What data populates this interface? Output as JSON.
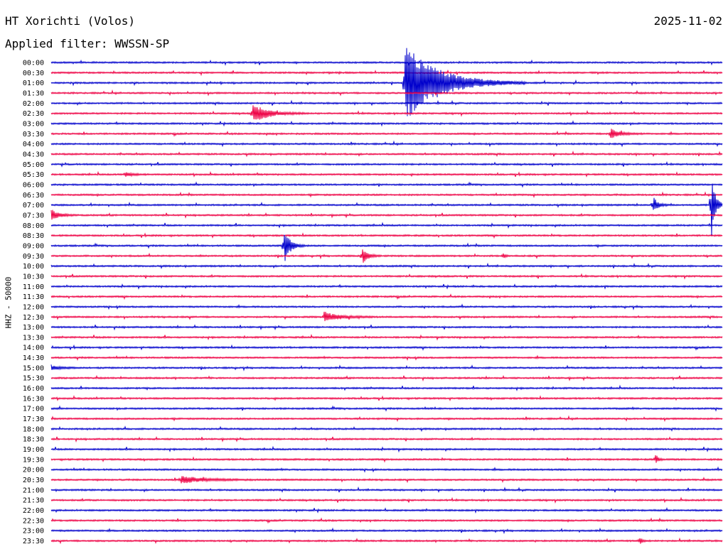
{
  "header": {
    "title": "HT Xorichti (Volos)",
    "date": "2025-11-02",
    "filter_label": "Applied filter: WWSSN-SP"
  },
  "chart_data": {
    "type": "line",
    "ylabel": "HHZ - 50000",
    "row_labels": [
      "00:00",
      "00:30",
      "01:00",
      "01:30",
      "02:00",
      "02:30",
      "03:00",
      "03:30",
      "04:00",
      "04:30",
      "05:00",
      "05:30",
      "06:00",
      "06:30",
      "07:00",
      "07:30",
      "08:00",
      "08:30",
      "09:00",
      "09:30",
      "10:00",
      "10:30",
      "11:00",
      "11:30",
      "12:00",
      "12:30",
      "13:00",
      "13:30",
      "14:00",
      "14:30",
      "15:00",
      "15:30",
      "16:00",
      "16:30",
      "17:00",
      "17:30",
      "18:00",
      "18:30",
      "19:00",
      "19:30",
      "20:00",
      "20:30",
      "21:00",
      "21:30",
      "22:00",
      "22:30",
      "23:00",
      "23:30"
    ],
    "colors": {
      "even_rows": "#0000cc",
      "odd_rows": "#ee0044"
    },
    "x_range_minutes": [
      0,
      30
    ],
    "events": [
      {
        "row": 2,
        "minute": 15.8,
        "amplitude": 55,
        "duration_minutes": 4.5
      },
      {
        "row": 5,
        "minute": 9.0,
        "amplitude": 14,
        "duration_minutes": 2.0
      },
      {
        "row": 7,
        "minute": 25.0,
        "amplitude": 7,
        "duration_minutes": 1.2
      },
      {
        "row": 11,
        "minute": 3.3,
        "amplitude": 3,
        "duration_minutes": 1.0
      },
      {
        "row": 14,
        "minute": 26.9,
        "amplitude": 12,
        "duration_minutes": 0.6
      },
      {
        "row": 14,
        "minute": 29.5,
        "amplitude": 50,
        "duration_minutes": 0.5
      },
      {
        "row": 15,
        "minute": 0.0,
        "amplitude": 8,
        "duration_minutes": 1.0
      },
      {
        "row": 18,
        "minute": 10.4,
        "amplitude": 26,
        "duration_minutes": 0.8
      },
      {
        "row": 19,
        "minute": 13.9,
        "amplitude": 12,
        "duration_minutes": 0.7
      },
      {
        "row": 19,
        "minute": 20.2,
        "amplitude": 4,
        "duration_minutes": 0.3
      },
      {
        "row": 25,
        "minute": 12.2,
        "amplitude": 7,
        "duration_minutes": 2.0
      },
      {
        "row": 30,
        "minute": 0.0,
        "amplitude": 3,
        "duration_minutes": 1.3
      },
      {
        "row": 39,
        "minute": 27.0,
        "amplitude": 6,
        "duration_minutes": 0.4
      },
      {
        "row": 41,
        "minute": 5.8,
        "amplitude": 5,
        "duration_minutes": 3.0
      },
      {
        "row": 47,
        "minute": 26.3,
        "amplitude": 6,
        "duration_minutes": 0.3
      }
    ]
  }
}
